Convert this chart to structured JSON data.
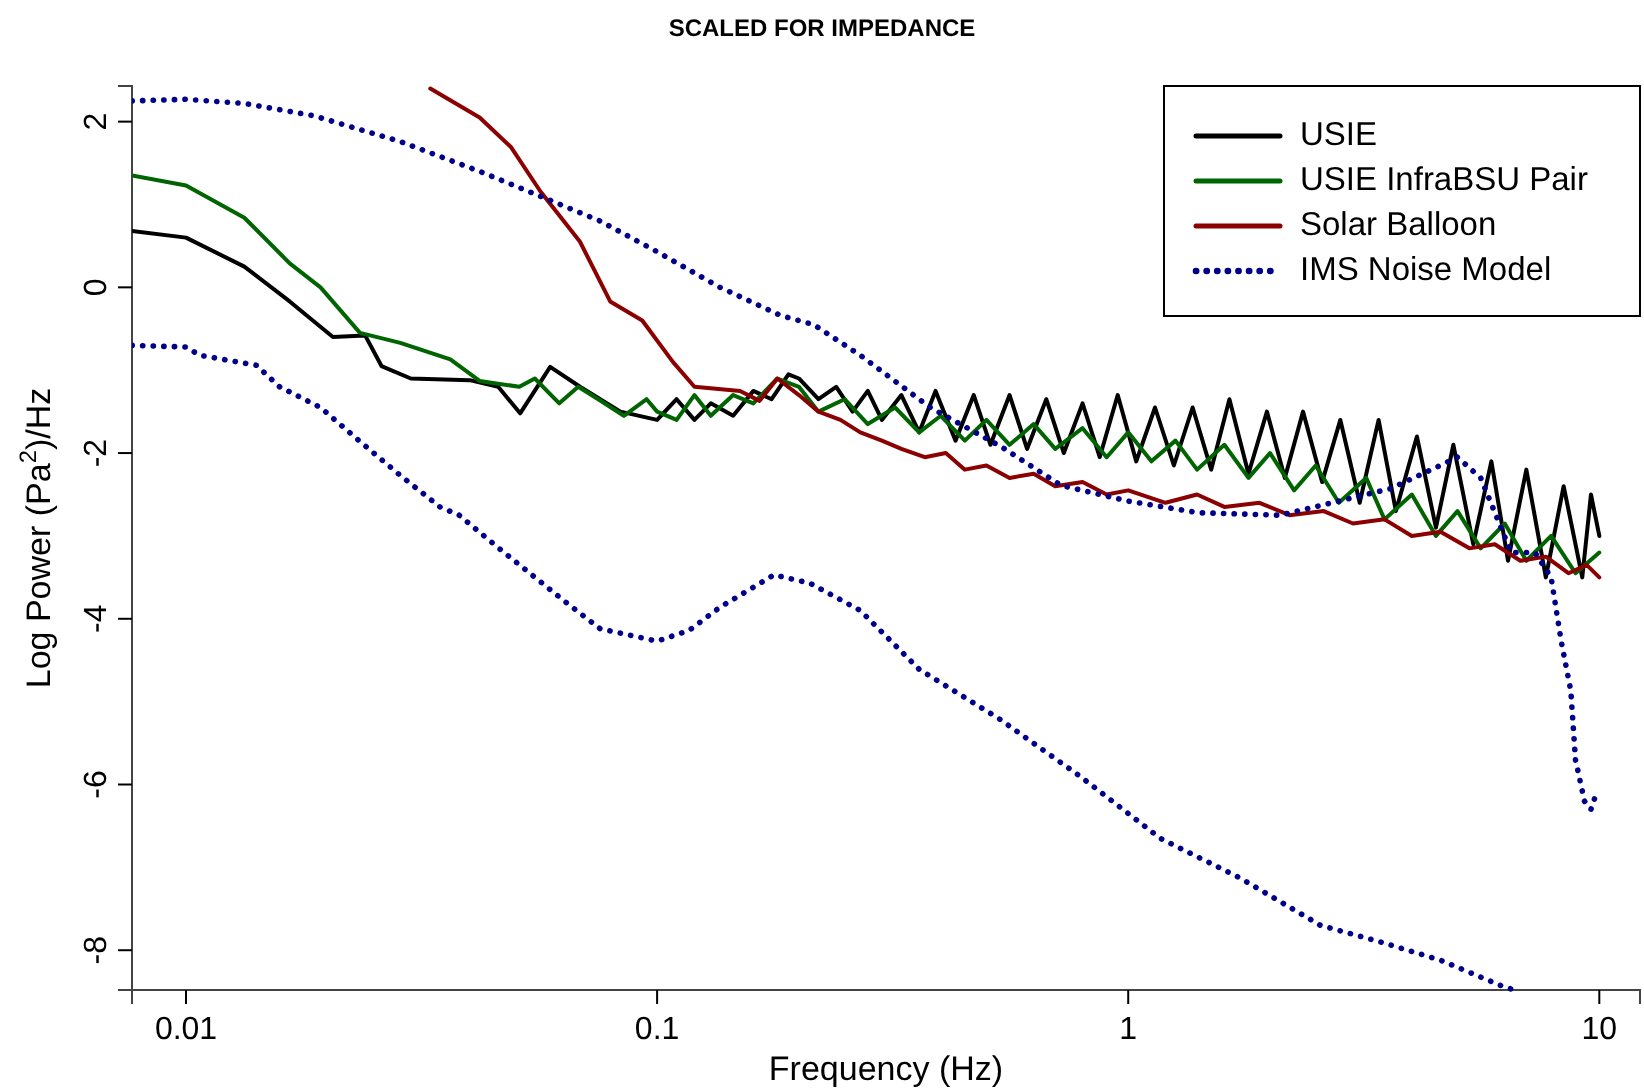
{
  "chart_data": {
    "type": "line",
    "title": "SCALED FOR IMPEDANCE",
    "xlabel": "Frequency (Hz)",
    "ylabel": "Log Power (Pa$^{2}$)/Hz",
    "log": "x",
    "legend": "top right",
    "marker": "none",
    "xlim": [
      0.00768,
      12.2
    ],
    "ylim": [
      -8.48,
      2.43
    ],
    "xticks": [
      0.01,
      0.1,
      1,
      10
    ],
    "yticks": [
      -8,
      -6,
      -4,
      -2,
      0,
      2
    ],
    "series": [
      {
        "name": "USIE",
        "color": "#000000",
        "line_style": "solid",
        "x": [
          0.00768,
          0.01,
          0.0133,
          0.0166,
          0.0205,
          0.024,
          0.026,
          0.03,
          0.04,
          0.046,
          0.0512,
          0.0593,
          0.0686,
          0.0836,
          0.1,
          0.11,
          0.12,
          0.13,
          0.145,
          0.16,
          0.175,
          0.19,
          0.2,
          0.22,
          0.24,
          0.26,
          0.28,
          0.3,
          0.33,
          0.36,
          0.39,
          0.43,
          0.47,
          0.51,
          0.56,
          0.61,
          0.67,
          0.73,
          0.8,
          0.87,
          0.95,
          1.04,
          1.14,
          1.25,
          1.37,
          1.5,
          1.64,
          1.8,
          1.97,
          2.15,
          2.35,
          2.58,
          2.82,
          3.1,
          3.4,
          3.7,
          4.1,
          4.5,
          4.9,
          5.4,
          5.9,
          6.4,
          7.0,
          7.7,
          8.4,
          9.2,
          9.6,
          10
        ],
        "values": [
          0.68,
          0.6,
          0.25,
          -0.17,
          -0.6,
          -0.58,
          -0.95,
          -1.1,
          -1.12,
          -1.2,
          -1.52,
          -0.96,
          -1.2,
          -1.5,
          -1.6,
          -1.35,
          -1.6,
          -1.4,
          -1.55,
          -1.25,
          -1.35,
          -1.05,
          -1.1,
          -1.35,
          -1.2,
          -1.5,
          -1.25,
          -1.6,
          -1.3,
          -1.75,
          -1.25,
          -1.85,
          -1.3,
          -1.9,
          -1.3,
          -1.95,
          -1.35,
          -2.0,
          -1.4,
          -2.05,
          -1.3,
          -2.1,
          -1.45,
          -2.15,
          -1.45,
          -2.2,
          -1.35,
          -2.25,
          -1.5,
          -2.3,
          -1.5,
          -2.35,
          -1.6,
          -2.6,
          -1.6,
          -2.7,
          -1.8,
          -2.9,
          -1.9,
          -3.1,
          -2.1,
          -3.3,
          -2.2,
          -3.5,
          -2.4,
          -3.5,
          -2.5,
          -3.0
        ]
      },
      {
        "name": "USIE InfraBSU Pair",
        "color": "#006400",
        "line_style": "solid",
        "x": [
          0.00768,
          0.01,
          0.0133,
          0.0166,
          0.0193,
          0.0234,
          0.0285,
          0.0364,
          0.042,
          0.051,
          0.055,
          0.062,
          0.068,
          0.075,
          0.085,
          0.095,
          0.1,
          0.11,
          0.12,
          0.13,
          0.145,
          0.16,
          0.18,
          0.2,
          0.22,
          0.25,
          0.28,
          0.32,
          0.36,
          0.4,
          0.45,
          0.5,
          0.56,
          0.63,
          0.7,
          0.8,
          0.9,
          1.0,
          1.12,
          1.26,
          1.4,
          1.6,
          1.8,
          2.0,
          2.25,
          2.5,
          2.8,
          3.2,
          3.5,
          4.0,
          4.5,
          5.0,
          5.6,
          6.3,
          7.0,
          7.9,
          8.9,
          10
        ],
        "values": [
          1.35,
          1.23,
          0.84,
          0.29,
          0.0,
          -0.55,
          -0.67,
          -0.87,
          -1.13,
          -1.2,
          -1.1,
          -1.4,
          -1.2,
          -1.35,
          -1.55,
          -1.35,
          -1.5,
          -1.6,
          -1.3,
          -1.55,
          -1.3,
          -1.4,
          -1.1,
          -1.2,
          -1.5,
          -1.35,
          -1.65,
          -1.45,
          -1.75,
          -1.55,
          -1.85,
          -1.6,
          -1.9,
          -1.65,
          -1.95,
          -1.7,
          -2.05,
          -1.75,
          -2.1,
          -1.85,
          -2.2,
          -1.9,
          -2.3,
          -2.0,
          -2.45,
          -2.15,
          -2.6,
          -2.3,
          -2.8,
          -2.5,
          -3.0,
          -2.7,
          -3.15,
          -2.85,
          -3.3,
          -3.0,
          -3.45,
          -3.2
        ]
      },
      {
        "name": "Solar Balloon",
        "color": "#8b0000",
        "line_style": "solid",
        "x": [
          0.033,
          0.042,
          0.049,
          0.0565,
          0.0686,
          0.0795,
          0.093,
          0.108,
          0.12,
          0.15,
          0.165,
          0.18,
          0.2,
          0.22,
          0.245,
          0.27,
          0.3,
          0.33,
          0.37,
          0.41,
          0.45,
          0.5,
          0.56,
          0.63,
          0.7,
          0.8,
          0.9,
          1.0,
          1.2,
          1.4,
          1.6,
          1.9,
          2.2,
          2.6,
          3.0,
          3.5,
          4.0,
          4.6,
          5.3,
          6.0,
          6.8,
          7.7,
          8.6,
          9.4,
          10
        ],
        "values": [
          2.4,
          2.05,
          1.69,
          1.16,
          0.55,
          -0.17,
          -0.4,
          -0.9,
          -1.2,
          -1.25,
          -1.37,
          -1.1,
          -1.3,
          -1.5,
          -1.6,
          -1.75,
          -1.85,
          -1.95,
          -2.05,
          -2.0,
          -2.2,
          -2.15,
          -2.3,
          -2.25,
          -2.4,
          -2.35,
          -2.5,
          -2.45,
          -2.6,
          -2.5,
          -2.65,
          -2.6,
          -2.75,
          -2.7,
          -2.85,
          -2.8,
          -3.0,
          -2.95,
          -3.15,
          -3.1,
          -3.3,
          -3.25,
          -3.45,
          -3.35,
          -3.5
        ]
      },
      {
        "name": "IMS Noise Model",
        "color": "#00008b",
        "line_style": "dotted",
        "x": [
          0.00768,
          0.01,
          0.0133,
          0.0187,
          0.0285,
          0.042,
          0.0565,
          0.0757,
          0.1,
          0.136,
          0.183,
          0.215,
          0.27,
          0.38,
          0.54,
          0.72,
          1.0,
          1.41,
          2.1,
          2.8,
          3.6,
          4.4,
          5.0,
          5.6,
          6.5,
          7.3,
          7.9,
          8.3,
          8.7,
          8.9,
          9.3,
          9.6,
          9.9
        ],
        "values": [
          2.25,
          2.27,
          2.22,
          2.07,
          1.76,
          1.4,
          1.1,
          0.8,
          0.43,
          0.0,
          -0.34,
          -0.45,
          -0.82,
          -1.45,
          -1.93,
          -2.39,
          -2.58,
          -2.72,
          -2.75,
          -2.58,
          -2.43,
          -2.2,
          -2.05,
          -2.3,
          -3.2,
          -3.2,
          -3.5,
          -4.27,
          -4.87,
          -5.7,
          -6.2,
          -6.3,
          -6.07
        ]
      },
      {
        "color": "#00008b",
        "line_style": "dotted",
        "x": [
          0.00768,
          0.01,
          0.0107,
          0.0141,
          0.0158,
          0.0193,
          0.0234,
          0.0285,
          0.0346,
          0.038,
          0.0464,
          0.064,
          0.0757,
          0.1,
          0.117,
          0.136,
          0.177,
          0.211,
          0.27,
          0.36,
          0.53,
          0.79,
          1.17,
          1.73,
          2.56,
          3.43,
          4.6,
          6.2,
          6.6
        ],
        "values": [
          -0.7,
          -0.72,
          -0.82,
          -0.94,
          -1.2,
          -1.45,
          -1.86,
          -2.27,
          -2.65,
          -2.75,
          -3.16,
          -3.8,
          -4.12,
          -4.27,
          -4.14,
          -3.86,
          -3.47,
          -3.57,
          -3.9,
          -4.61,
          -5.2,
          -5.9,
          -6.65,
          -7.13,
          -7.7,
          -7.9,
          -8.12,
          -8.43,
          -8.48
        ]
      }
    ]
  }
}
